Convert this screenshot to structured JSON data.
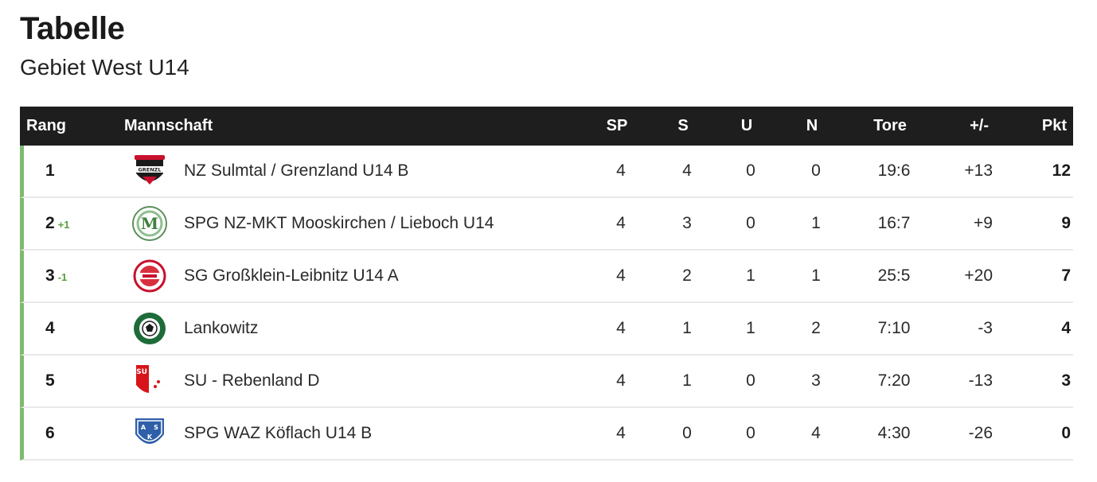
{
  "header": {
    "title": "Tabelle",
    "subtitle": "Gebiet West U14"
  },
  "columns": {
    "rang": "Rang",
    "mannschaft": "Mannschaft",
    "sp": "SP",
    "s": "S",
    "u": "U",
    "n": "N",
    "tore": "Tore",
    "diff": "+/-",
    "pkt": "Pkt"
  },
  "colors": {
    "header_bg": "#1e1e1e",
    "row_accent": "#7dbb6e",
    "move_up": "#5a9c3f"
  },
  "rows": [
    {
      "rang": "1",
      "move": "",
      "team": "NZ Sulmtal / Grenzland U14 B",
      "logo": "grenzland-crest-icon",
      "sp": "4",
      "s": "4",
      "u": "0",
      "n": "0",
      "tore": "19:6",
      "diff": "+13",
      "pkt": "12"
    },
    {
      "rang": "2",
      "move": "+1",
      "team": "SPG NZ-MKT Mooskirchen / Lieboch U14",
      "logo": "mooskirchen-crest-icon",
      "sp": "4",
      "s": "3",
      "u": "0",
      "n": "1",
      "tore": "16:7",
      "diff": "+9",
      "pkt": "9"
    },
    {
      "rang": "3",
      "move": "-1",
      "team": "SG Großklein-Leibnitz U14 A",
      "logo": "grossklein-crest-icon",
      "sp": "4",
      "s": "2",
      "u": "1",
      "n": "1",
      "tore": "25:5",
      "diff": "+20",
      "pkt": "7"
    },
    {
      "rang": "4",
      "move": "",
      "team": "Lankowitz",
      "logo": "lankowitz-crest-icon",
      "sp": "4",
      "s": "1",
      "u": "1",
      "n": "2",
      "tore": "7:10",
      "diff": "-3",
      "pkt": "4"
    },
    {
      "rang": "5",
      "move": "",
      "team": "SU - Rebenland D",
      "logo": "rebenland-crest-icon",
      "sp": "4",
      "s": "1",
      "u": "0",
      "n": "3",
      "tore": "7:20",
      "diff": "-13",
      "pkt": "3"
    },
    {
      "rang": "6",
      "move": "",
      "team": "SPG WAZ Köflach U14 B",
      "logo": "koeflach-crest-icon",
      "sp": "4",
      "s": "0",
      "u": "0",
      "n": "4",
      "tore": "4:30",
      "diff": "-26",
      "pkt": "0"
    }
  ]
}
